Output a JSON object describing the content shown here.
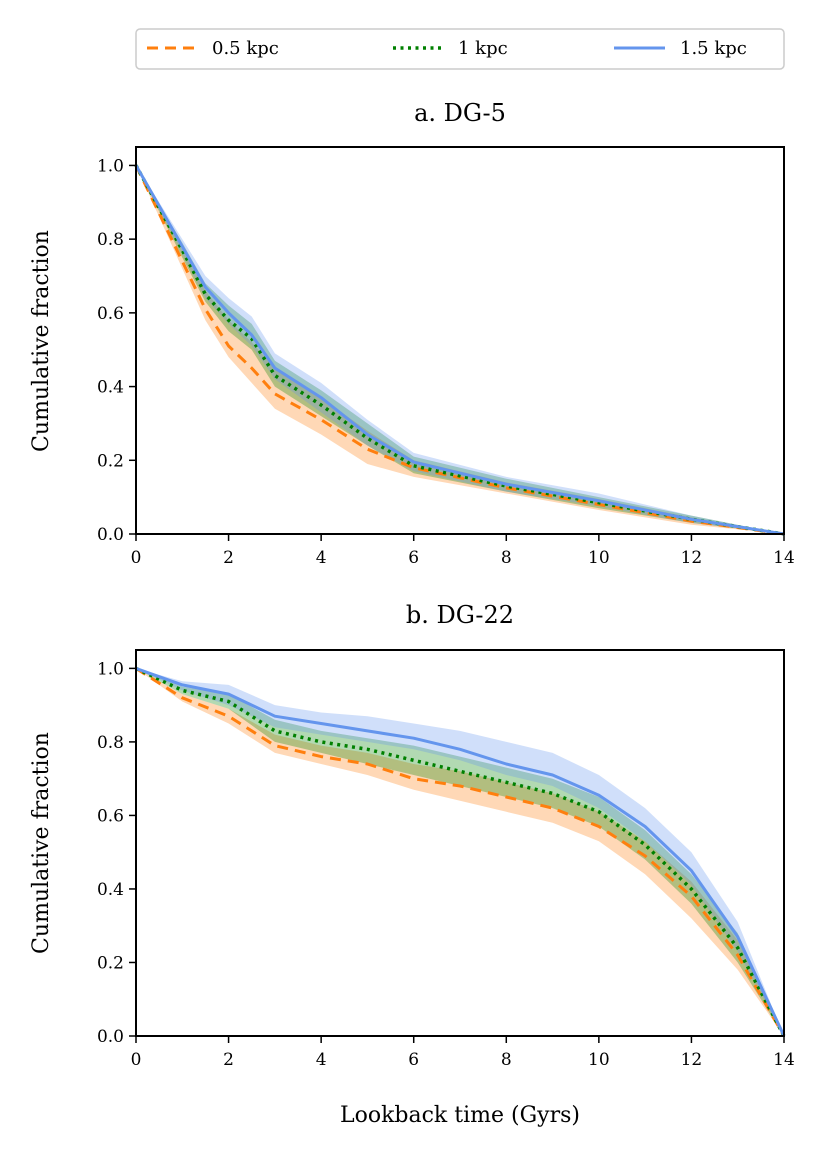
{
  "chart_data": [
    {
      "type": "line",
      "title": "a. DG-5",
      "xlabel": "",
      "ylabel": "Cumulative fraction",
      "xlim": [
        0,
        14
      ],
      "ylim": [
        0,
        1.05
      ],
      "xticks": [
        0,
        2,
        4,
        6,
        8,
        10,
        12,
        14
      ],
      "yticks": [
        0.0,
        0.2,
        0.4,
        0.6,
        0.8,
        1.0
      ],
      "series": [
        {
          "name": "0.5 kpc",
          "color": "#ff7f0e",
          "style": "dashed",
          "x": [
            0,
            1,
            1.5,
            2,
            2.5,
            3,
            4,
            5,
            6,
            8,
            10,
            12,
            14
          ],
          "y": [
            1.0,
            0.74,
            0.61,
            0.51,
            0.45,
            0.38,
            0.31,
            0.23,
            0.18,
            0.125,
            0.08,
            0.035,
            0.0
          ],
          "band_lower": [
            1.0,
            0.72,
            0.58,
            0.48,
            0.41,
            0.34,
            0.27,
            0.19,
            0.155,
            0.11,
            0.065,
            0.025,
            0.0
          ],
          "band_upper": [
            1.0,
            0.77,
            0.66,
            0.58,
            0.52,
            0.45,
            0.37,
            0.28,
            0.2,
            0.14,
            0.095,
            0.045,
            0.0
          ]
        },
        {
          "name": "1 kpc",
          "color": "#008000",
          "style": "dotted",
          "x": [
            0,
            1,
            1.5,
            2,
            2.5,
            3,
            4,
            5,
            6,
            8,
            10,
            12,
            14
          ],
          "y": [
            1.0,
            0.77,
            0.65,
            0.58,
            0.53,
            0.43,
            0.35,
            0.26,
            0.185,
            0.13,
            0.085,
            0.04,
            0.0
          ],
          "band_lower": [
            1.0,
            0.75,
            0.63,
            0.55,
            0.5,
            0.4,
            0.32,
            0.24,
            0.165,
            0.115,
            0.07,
            0.03,
            0.0
          ],
          "band_upper": [
            1.0,
            0.79,
            0.68,
            0.62,
            0.57,
            0.47,
            0.39,
            0.3,
            0.21,
            0.15,
            0.1,
            0.05,
            0.0
          ]
        },
        {
          "name": "1.5 kpc",
          "color": "#6495ed",
          "style": "solid",
          "x": [
            0,
            1,
            1.5,
            2,
            2.5,
            3,
            4,
            5,
            6,
            8,
            10,
            12,
            14
          ],
          "y": [
            1.0,
            0.78,
            0.67,
            0.6,
            0.54,
            0.45,
            0.37,
            0.27,
            0.195,
            0.135,
            0.09,
            0.04,
            0.0
          ],
          "band_lower": [
            1.0,
            0.76,
            0.64,
            0.57,
            0.51,
            0.42,
            0.33,
            0.24,
            0.17,
            0.115,
            0.075,
            0.03,
            0.0
          ],
          "band_upper": [
            1.0,
            0.8,
            0.7,
            0.64,
            0.59,
            0.49,
            0.41,
            0.31,
            0.22,
            0.155,
            0.11,
            0.05,
            0.0
          ]
        }
      ]
    },
    {
      "type": "line",
      "title": "b. DG-22",
      "xlabel": "Lookback time (Gyrs)",
      "ylabel": "Cumulative fraction",
      "xlim": [
        0,
        14
      ],
      "ylim": [
        0,
        1.05
      ],
      "xticks": [
        0,
        2,
        4,
        6,
        8,
        10,
        12,
        14
      ],
      "yticks": [
        0.0,
        0.2,
        0.4,
        0.6,
        0.8,
        1.0
      ],
      "series": [
        {
          "name": "0.5 kpc",
          "color": "#ff7f0e",
          "style": "dashed",
          "x": [
            0,
            1,
            2,
            3,
            4,
            5,
            6,
            7,
            8,
            9,
            10,
            11,
            12,
            13,
            14
          ],
          "y": [
            1.0,
            0.92,
            0.87,
            0.79,
            0.76,
            0.74,
            0.7,
            0.68,
            0.65,
            0.62,
            0.57,
            0.49,
            0.38,
            0.22,
            0.0
          ],
          "band_lower": [
            1.0,
            0.91,
            0.85,
            0.77,
            0.74,
            0.71,
            0.67,
            0.64,
            0.61,
            0.58,
            0.53,
            0.44,
            0.32,
            0.18,
            0.0
          ],
          "band_upper": [
            1.0,
            0.93,
            0.89,
            0.82,
            0.79,
            0.77,
            0.74,
            0.72,
            0.69,
            0.66,
            0.61,
            0.53,
            0.42,
            0.26,
            0.0
          ]
        },
        {
          "name": "1 kpc",
          "color": "#008000",
          "style": "dotted",
          "x": [
            0,
            1,
            2,
            3,
            4,
            5,
            6,
            7,
            8,
            9,
            10,
            11,
            12,
            13,
            14
          ],
          "y": [
            1.0,
            0.94,
            0.91,
            0.83,
            0.8,
            0.78,
            0.75,
            0.72,
            0.69,
            0.66,
            0.61,
            0.52,
            0.4,
            0.24,
            0.0
          ],
          "band_lower": [
            1.0,
            0.93,
            0.89,
            0.8,
            0.77,
            0.74,
            0.71,
            0.68,
            0.65,
            0.62,
            0.57,
            0.48,
            0.36,
            0.2,
            0.0
          ],
          "band_upper": [
            1.0,
            0.95,
            0.93,
            0.86,
            0.83,
            0.81,
            0.79,
            0.76,
            0.73,
            0.7,
            0.65,
            0.56,
            0.44,
            0.28,
            0.0
          ]
        },
        {
          "name": "1.5 kpc",
          "color": "#6495ed",
          "style": "solid",
          "x": [
            0,
            1,
            2,
            3,
            4,
            5,
            6,
            7,
            8,
            9,
            10,
            11,
            12,
            13,
            14
          ],
          "y": [
            1.0,
            0.955,
            0.93,
            0.87,
            0.85,
            0.83,
            0.81,
            0.78,
            0.74,
            0.71,
            0.655,
            0.57,
            0.45,
            0.27,
            0.0
          ],
          "band_lower": [
            1.0,
            0.94,
            0.9,
            0.84,
            0.82,
            0.8,
            0.78,
            0.75,
            0.71,
            0.68,
            0.62,
            0.53,
            0.41,
            0.23,
            0.0
          ],
          "band_upper": [
            1.0,
            0.965,
            0.955,
            0.9,
            0.88,
            0.87,
            0.85,
            0.83,
            0.8,
            0.77,
            0.71,
            0.62,
            0.5,
            0.31,
            0.0
          ]
        }
      ]
    }
  ],
  "legend": {
    "entries": [
      {
        "label": "0.5 kpc",
        "color": "#ff7f0e",
        "style": "dashed"
      },
      {
        "label": "1 kpc",
        "color": "#008000",
        "style": "dotted"
      },
      {
        "label": "1.5 kpc",
        "color": "#6495ed",
        "style": "solid"
      }
    ]
  }
}
